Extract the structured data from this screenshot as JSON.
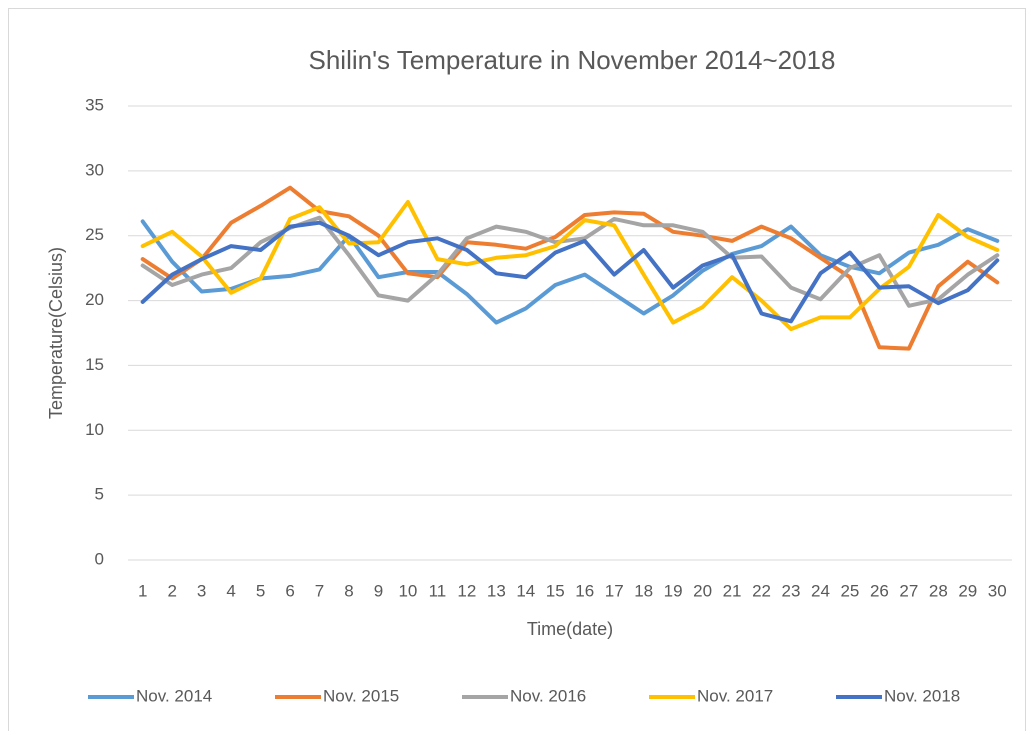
{
  "chart_data": {
    "type": "line",
    "title": "Shilin's Temperature in November 2014~2018",
    "xlabel": "Time(date)",
    "ylabel": "Temperature(Celsius)",
    "categories": [
      1,
      2,
      3,
      4,
      5,
      6,
      7,
      8,
      9,
      10,
      11,
      12,
      13,
      14,
      15,
      16,
      17,
      18,
      19,
      20,
      21,
      22,
      23,
      24,
      25,
      26,
      27,
      28,
      29,
      30
    ],
    "series": [
      {
        "name": "Nov. 2014",
        "color": "#5b9bd5",
        "values": [
          26.1,
          23.0,
          20.7,
          20.9,
          21.7,
          21.9,
          22.4,
          25.0,
          21.8,
          22.2,
          22.2,
          20.5,
          18.3,
          19.4,
          21.2,
          22.0,
          20.5,
          19.0,
          20.4,
          22.3,
          23.6,
          24.2,
          25.7,
          23.5,
          22.6,
          22.1,
          23.7,
          24.3,
          25.5,
          24.6
        ]
      },
      {
        "name": "Nov. 2015",
        "color": "#ed7d31",
        "values": [
          23.2,
          21.7,
          23.2,
          26.0,
          27.3,
          28.7,
          26.9,
          26.5,
          25.0,
          22.1,
          21.8,
          24.5,
          24.3,
          24.0,
          24.9,
          26.6,
          26.8,
          26.7,
          25.3,
          25.0,
          24.6,
          25.7,
          24.8,
          23.3,
          21.8,
          16.4,
          16.3,
          21.1,
          23.0,
          21.4
        ]
      },
      {
        "name": "Nov. 2016",
        "color": "#a5a5a5",
        "values": [
          22.7,
          21.2,
          22.0,
          22.5,
          24.5,
          25.6,
          26.4,
          23.5,
          20.4,
          20.0,
          22.0,
          24.8,
          25.7,
          25.3,
          24.5,
          24.8,
          26.3,
          25.8,
          25.8,
          25.3,
          23.3,
          23.4,
          21.0,
          20.1,
          22.5,
          23.5,
          19.6,
          20.1,
          22.0,
          23.5
        ]
      },
      {
        "name": "Nov. 2017",
        "color": "#ffc000",
        "values": [
          24.2,
          25.3,
          23.4,
          20.6,
          21.7,
          26.3,
          27.2,
          24.4,
          24.5,
          27.6,
          23.2,
          22.8,
          23.3,
          23.5,
          24.2,
          26.2,
          25.8,
          22.0,
          18.3,
          19.5,
          21.8,
          20.0,
          17.8,
          18.7,
          18.7,
          20.9,
          22.6,
          26.6,
          24.9,
          23.9
        ]
      },
      {
        "name": "Nov. 2018",
        "color": "#4472c4",
        "values": [
          19.9,
          22.0,
          23.2,
          24.2,
          23.9,
          25.7,
          26.0,
          25.0,
          23.5,
          24.5,
          24.8,
          23.9,
          22.1,
          21.8,
          23.7,
          24.6,
          22.0,
          23.9,
          21.0,
          22.7,
          23.5,
          19.0,
          18.4,
          22.1,
          23.7,
          21.0,
          21.1,
          19.8,
          20.8,
          23.1
        ]
      }
    ],
    "ylim": [
      0,
      35
    ],
    "yticks": [
      0,
      5,
      10,
      15,
      20,
      25,
      30,
      35
    ],
    "grid": true,
    "legend": "bottom"
  }
}
